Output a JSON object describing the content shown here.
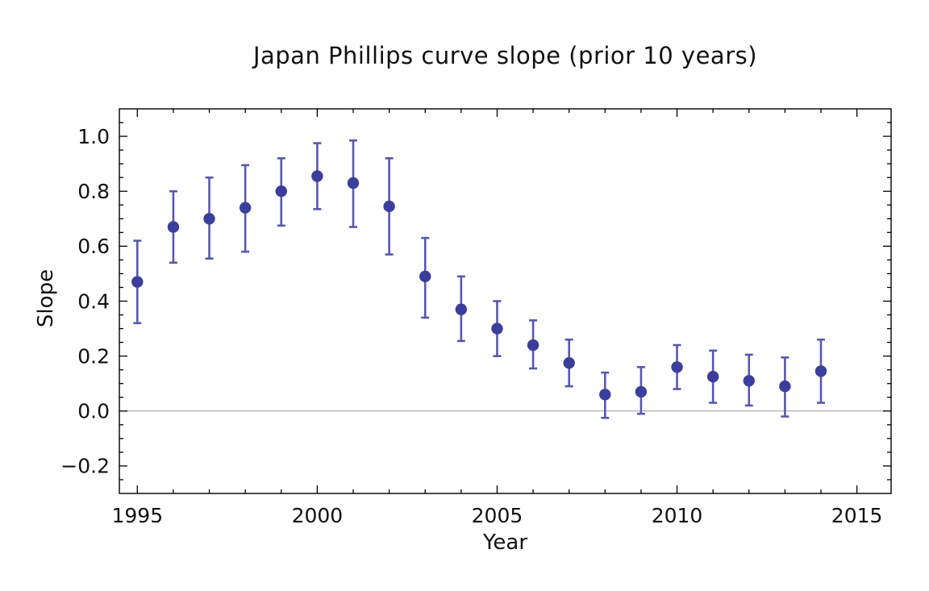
{
  "chart_data": {
    "type": "scatter",
    "title": "Japan Phillips curve slope (prior 10 years)",
    "xlabel": "Year",
    "ylabel": "Slope",
    "xlim": [
      1994.5,
      2015.95
    ],
    "ylim": [
      -0.3,
      1.1
    ],
    "grid": false,
    "legend": "none",
    "frame": true,
    "zero_line": 0.0,
    "x_ticks": {
      "values": [
        1995,
        2000,
        2005,
        2010,
        2015
      ],
      "labels": [
        "1995",
        "2000",
        "2005",
        "2010",
        "2015"
      ],
      "minor_step": 1
    },
    "y_ticks": {
      "values": [
        -0.2,
        0.0,
        0.2,
        0.4,
        0.6,
        0.8,
        1.0
      ],
      "labels": [
        "−0.2",
        "0.0",
        "0.2",
        "0.4",
        "0.6",
        "0.8",
        "1.0"
      ],
      "minor_step": 0.05
    },
    "series": [
      {
        "name": "phillips-curve-slope",
        "marker": "filled-circle",
        "error_bars": true,
        "x": [
          1995,
          1996,
          1997,
          1998,
          1999,
          2000,
          2001,
          2002,
          2003,
          2004,
          2005,
          2006,
          2007,
          2008,
          2009,
          2010,
          2011,
          2012,
          2013,
          2014
        ],
        "y": [
          0.47,
          0.67,
          0.7,
          0.74,
          0.8,
          0.855,
          0.83,
          0.745,
          0.49,
          0.37,
          0.3,
          0.24,
          0.175,
          0.06,
          0.07,
          0.16,
          0.125,
          0.11,
          0.09,
          0.145
        ],
        "y_low": [
          0.32,
          0.54,
          0.555,
          0.58,
          0.675,
          0.735,
          0.67,
          0.57,
          0.34,
          0.255,
          0.2,
          0.155,
          0.09,
          -0.025,
          -0.01,
          0.08,
          0.03,
          0.02,
          -0.02,
          0.03
        ],
        "y_high": [
          0.62,
          0.8,
          0.85,
          0.895,
          0.92,
          0.975,
          0.985,
          0.92,
          0.63,
          0.49,
          0.4,
          0.33,
          0.26,
          0.14,
          0.16,
          0.24,
          0.22,
          0.205,
          0.195,
          0.26
        ]
      }
    ],
    "colors": {
      "point": "#3b3e9b",
      "error_bar": "#5659ae",
      "frame": "#000000",
      "tick": "#000000",
      "zero_line": "#9a9a9a",
      "background": "#ffffff"
    }
  }
}
